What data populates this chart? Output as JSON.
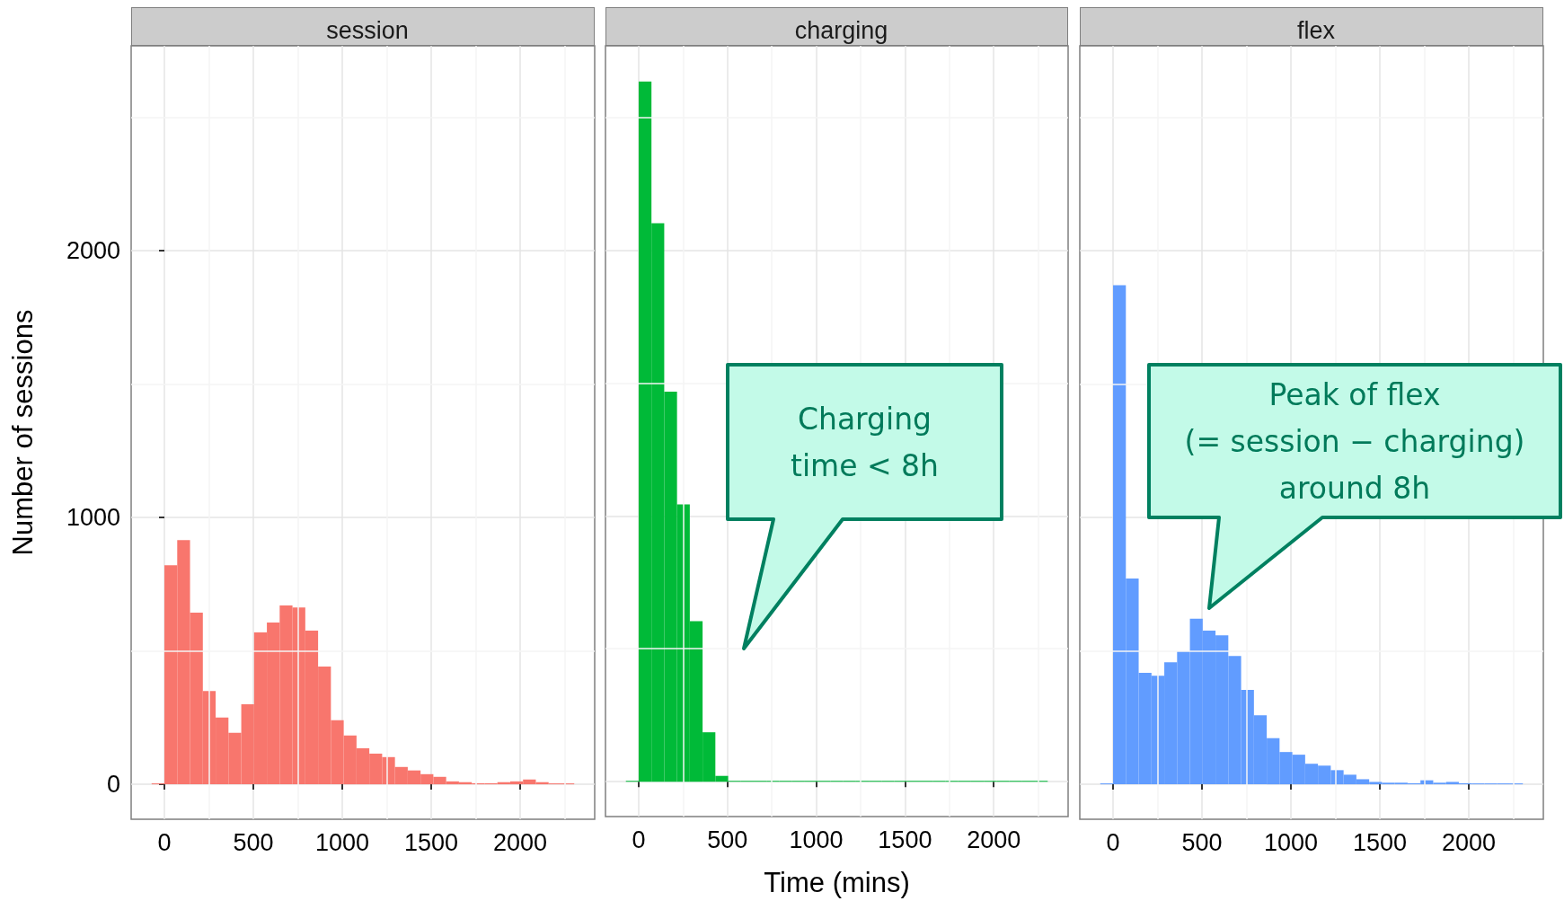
{
  "chart_data": [
    {
      "type": "histogram",
      "title": "session",
      "ylabel": "Number of sessions",
      "color": "#f8766d",
      "bins": [
        -72,
        0,
        72,
        144,
        216,
        288,
        360,
        432,
        504,
        576,
        648,
        720,
        792,
        864,
        936,
        1008,
        1080,
        1152,
        1224,
        1296,
        1368,
        1440,
        1512,
        1584,
        1656,
        1728,
        1800,
        1872,
        1944,
        2016,
        2088,
        2160,
        2232,
        2304
      ],
      "values": [
        2,
        821,
        915,
        643,
        350,
        250,
        193,
        300,
        569,
        606,
        670,
        663,
        576,
        441,
        240,
        183,
        135,
        115,
        102,
        65,
        52,
        38,
        28,
        11,
        8,
        4,
        4,
        8,
        11,
        18,
        8,
        2,
        2
      ],
      "xlim": [
        -187,
        2419
      ],
      "xticks": [
        0,
        500,
        1000,
        1500,
        2000
      ],
      "ylim": [
        -131,
        2768
      ],
      "yticks": [
        0,
        1000,
        2000
      ],
      "grid": true
    },
    {
      "type": "histogram",
      "title": "charging",
      "xlabel": "Time (mins)",
      "color": "#00ba38",
      "bins": [
        -72,
        0,
        72,
        144,
        216,
        288,
        360,
        432,
        504,
        576,
        648,
        720,
        792,
        864,
        936,
        1008,
        1080,
        1152,
        1224,
        1296,
        1368,
        1440,
        1512,
        1584,
        1656,
        1728,
        1800,
        1872,
        1944,
        2016,
        2088,
        2160,
        2232,
        2304
      ],
      "values": [
        0,
        2634,
        2101,
        1467,
        1043,
        604,
        186,
        22,
        0,
        0,
        0,
        0,
        0,
        0,
        0,
        0,
        0,
        0,
        0,
        0,
        0,
        0,
        0,
        0,
        0,
        0,
        0,
        0,
        0,
        0,
        0,
        0,
        0
      ],
      "xlim": [
        -187,
        2419
      ],
      "xticks": [
        0,
        500,
        1000,
        1500,
        2000
      ],
      "ylim": [
        -131,
        2768
      ],
      "yticks": [
        0,
        1000,
        2000
      ],
      "grid": true,
      "tick_labels": "x",
      "annotations": [
        "Charging\ntime < 8h"
      ]
    },
    {
      "type": "histogram",
      "title": "flex",
      "color": "#619cff",
      "bins": [
        -72,
        0,
        72,
        144,
        216,
        288,
        360,
        432,
        504,
        576,
        648,
        720,
        792,
        864,
        936,
        1008,
        1080,
        1152,
        1224,
        1296,
        1368,
        1440,
        1512,
        1584,
        1656,
        1728,
        1800,
        1872,
        1944,
        2016,
        2088,
        2160,
        2232,
        2304
      ],
      "values": [
        0,
        1871,
        771,
        418,
        407,
        457,
        499,
        621,
        576,
        558,
        481,
        354,
        259,
        173,
        121,
        111,
        77,
        70,
        53,
        36,
        19,
        9,
        6,
        6,
        4,
        15,
        6,
        9,
        4,
        1,
        1,
        1,
        1
      ],
      "xlim": [
        -187,
        2419
      ],
      "xticks": [
        0,
        500,
        1000,
        1500,
        2000
      ],
      "ylim": [
        -131,
        2768
      ],
      "yticks": [
        0,
        1000,
        2000
      ],
      "grid": true,
      "tick_labels": "x",
      "annotations": [
        "Peak of flex\n(= session − charging)\naround 8h"
      ]
    }
  ]
}
